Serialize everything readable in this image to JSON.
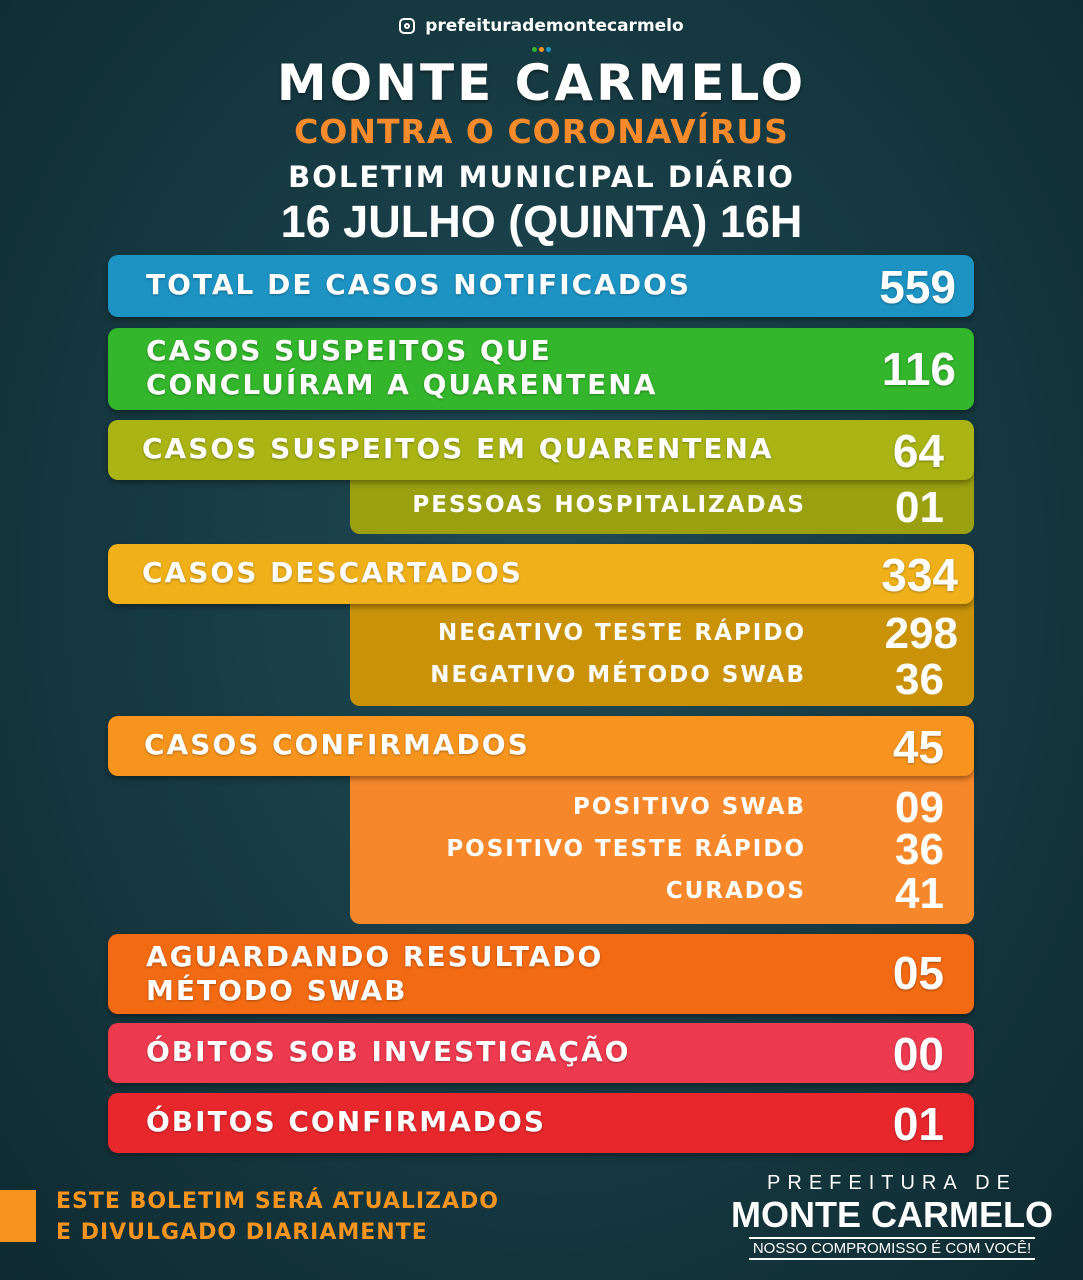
{
  "header": {
    "social_handle": "prefeiturademontecarmelo",
    "title": "MONTE CARMELO",
    "subtitle": "CONTRA O CORONAVÍRUS",
    "bulletin": "BOLETIM MUNICIPAL DIÁRIO",
    "date": "16 JULHO (QUINTA) 16H"
  },
  "rows": {
    "total": {
      "label": "TOTAL DE CASOS NOTIFICADOS",
      "value": "559",
      "color": "#1d93c4"
    },
    "concluded": {
      "label_line1": "CASOS SUSPEITOS QUE",
      "label_line2": "CONCLUÍRAM A QUARENTENA",
      "value": "116",
      "color": "#33b62b"
    },
    "quarantine": {
      "label": "CASOS SUSPEITOS EM QUARENTENA",
      "value": "64",
      "color": "#aab414",
      "sub": [
        {
          "label": "PESSOAS HOSPITALIZADAS",
          "value": "01"
        }
      ]
    },
    "discarded": {
      "label": "CASOS DESCARTADOS",
      "value": "334",
      "color": "#f0b01a",
      "sub": [
        {
          "label": "NEGATIVO TESTE RÁPIDO",
          "value": "298"
        },
        {
          "label": "NEGATIVO MÉTODO SWAB",
          "value": "36"
        }
      ]
    },
    "confirmed": {
      "label": "CASOS CONFIRMADOS",
      "value": "45",
      "color": "#f7941d",
      "sub": [
        {
          "label": "POSITIVO SWAB",
          "value": "09"
        },
        {
          "label": "POSITIVO TESTE RÁPIDO",
          "value": "36"
        },
        {
          "label": "CURADOS",
          "value": "41"
        }
      ]
    },
    "awaiting": {
      "label_line1": "AGUARDANDO RESULTADO",
      "label_line2": "MÉTODO SWAB",
      "value": "05",
      "color": "#f26a12"
    },
    "deaths_investigation": {
      "label": "ÓBITOS SOB INVESTIGAÇÃO",
      "value": "00",
      "color": "#ee3a4e"
    },
    "deaths_confirmed": {
      "label": "ÓBITOS CONFIRMADOS",
      "value": "01",
      "color": "#e8272c"
    }
  },
  "footer": {
    "notice_line1": "ESTE BOLETIM SERÁ ATUALIZADO",
    "notice_line2": "E DIVULGADO DIARIAMENTE",
    "logo_top": "PREFEITURA DE",
    "logo_main": "MONTE CARMELO",
    "logo_tagline": "NOSSO COMPROMISSO É COM VOCÊ!"
  }
}
